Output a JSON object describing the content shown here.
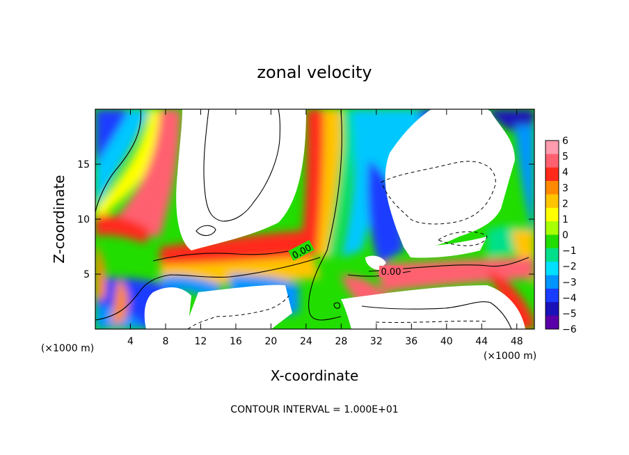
{
  "chart_data": {
    "type": "heatmap",
    "title": "zonal velocity",
    "xlabel": "X-coordinate",
    "ylabel": "Z-coordinate",
    "x_unit": "(×1000 m)",
    "x_ticks": [
      4,
      8,
      12,
      16,
      20,
      24,
      28,
      32,
      36,
      40,
      44,
      48
    ],
    "y_ticks": [
      5,
      10,
      15
    ],
    "xlim": [
      0,
      50
    ],
    "ylim": [
      0,
      20
    ],
    "colorbar_ticks": [
      6,
      5,
      4,
      3,
      2,
      1,
      0,
      -1,
      -2,
      -3,
      -4,
      -5,
      -6
    ],
    "colorbar_colors": [
      "#ff9cae",
      "#ff6070",
      "#ff2a1a",
      "#ff8a00",
      "#ffc400",
      "#ffff00",
      "#a8ff00",
      "#22dd00",
      "#00e08a",
      "#00e0ff",
      "#0094ff",
      "#1a3cff",
      "#1a12b8",
      "#5a00a8"
    ],
    "contour_labels": [
      "0.00",
      "0.00"
    ],
    "footer": "CONTOUR INTERVAL = 1.000E+01"
  }
}
